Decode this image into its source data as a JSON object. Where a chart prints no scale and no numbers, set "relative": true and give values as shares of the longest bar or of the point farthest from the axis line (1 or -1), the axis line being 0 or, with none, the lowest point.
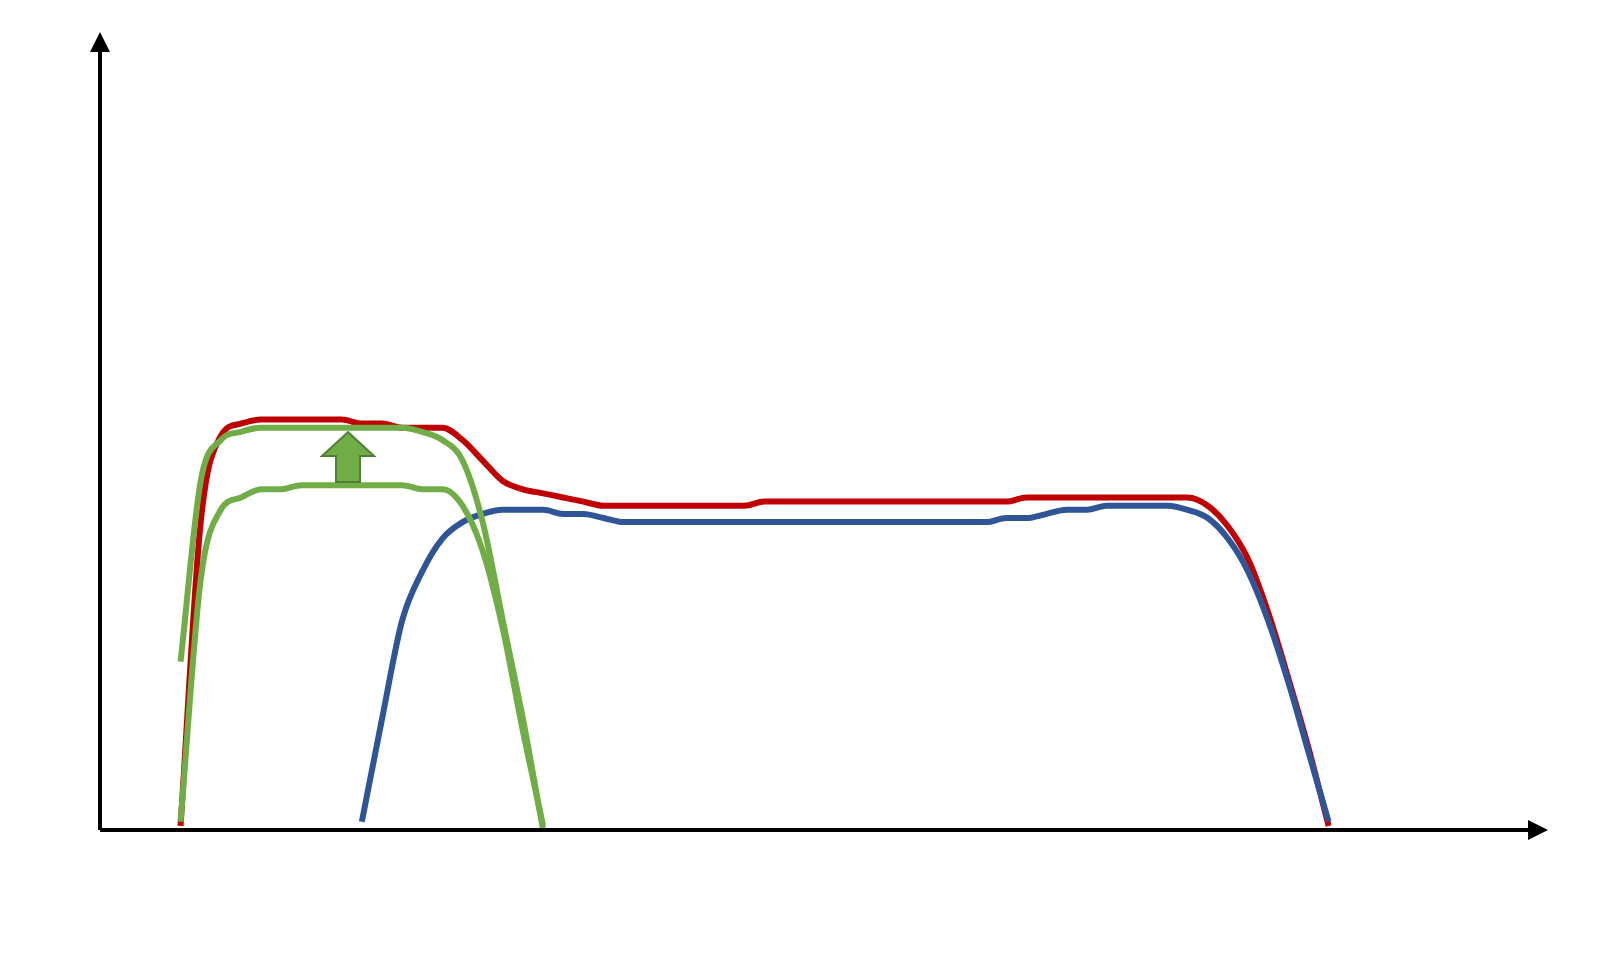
{
  "chart_data": {
    "type": "line",
    "relative": true,
    "grid": false,
    "legend": false,
    "marker": "none",
    "categories": [
      null,
      null,
      null,
      null,
      null,
      null,
      null,
      null,
      null,
      null,
      null,
      null,
      null,
      null,
      null,
      null,
      null,
      null,
      null,
      null,
      null,
      null,
      null,
      null,
      null,
      null,
      null,
      null,
      null,
      null,
      null,
      null,
      null,
      null,
      null,
      null,
      null,
      null,
      null,
      null,
      null,
      null,
      null,
      null,
      null,
      null,
      null,
      null,
      null,
      null,
      null,
      null,
      null,
      null,
      null,
      null,
      null,
      null,
      null,
      null,
      null,
      null,
      null,
      null,
      null,
      null,
      null,
      null,
      null,
      null,
      null,
      null
    ],
    "series": [
      {
        "color": "#70ad47",
        "values": [
          null,
          null,
          null,
          null,
          0.41,
          0.85,
          0.95,
          0.97,
          0.98,
          0.98,
          0.98,
          0.98,
          0.98,
          0.98,
          0.98,
          0.98,
          0.97,
          0.95,
          0.9,
          0.75,
          0.51,
          0.27,
          0.0,
          null,
          null,
          null,
          null,
          null,
          null,
          null,
          null,
          null,
          null,
          null,
          null,
          null,
          null,
          null,
          null,
          null,
          null,
          null,
          null,
          null,
          null,
          null,
          null,
          null,
          null,
          null,
          null,
          null,
          null,
          null,
          null,
          null,
          null,
          null,
          null,
          null,
          null,
          null,
          null,
          null,
          null,
          null,
          null,
          null,
          null,
          null,
          null,
          null
        ]
      },
      {
        "color": "#70ad47",
        "values": [
          null,
          null,
          null,
          null,
          0.02,
          0.61,
          0.78,
          0.81,
          0.83,
          0.83,
          0.84,
          0.84,
          0.84,
          0.84,
          0.84,
          0.84,
          0.83,
          0.83,
          0.79,
          0.68,
          0.49,
          0.24,
          0.01,
          null,
          null,
          null,
          null,
          null,
          null,
          null,
          null,
          null,
          null,
          null,
          null,
          null,
          null,
          null,
          null,
          null,
          null,
          null,
          null,
          null,
          null,
          null,
          null,
          null,
          null,
          null,
          null,
          null,
          null,
          null,
          null,
          null,
          null,
          null,
          null,
          null,
          null,
          null,
          null,
          null,
          null,
          null,
          null,
          null,
          null,
          null,
          null,
          null
        ]
      },
      {
        "color": "#2f5597",
        "values": [
          null,
          null,
          null,
          null,
          null,
          null,
          null,
          null,
          null,
          null,
          null,
          null,
          null,
          0.02,
          0.27,
          0.51,
          0.63,
          0.71,
          0.75,
          0.77,
          0.78,
          0.78,
          0.78,
          0.77,
          0.77,
          0.76,
          0.75,
          0.75,
          0.75,
          0.75,
          0.75,
          0.75,
          0.75,
          0.75,
          0.75,
          0.75,
          0.75,
          0.75,
          0.75,
          0.75,
          0.75,
          0.75,
          0.75,
          0.75,
          0.75,
          0.76,
          0.76,
          0.77,
          0.78,
          0.78,
          0.79,
          0.79,
          0.79,
          0.79,
          0.78,
          0.76,
          0.71,
          0.63,
          0.51,
          0.36,
          0.19,
          0.02,
          null,
          null,
          null,
          null,
          null,
          null,
          null,
          null,
          null,
          null
        ]
      },
      {
        "color": "#c00000",
        "values": [
          null,
          null,
          null,
          null,
          0.01,
          0.75,
          0.96,
          0.99,
          1.0,
          1.0,
          1.0,
          1.0,
          1.0,
          0.99,
          0.99,
          0.98,
          0.98,
          0.98,
          0.95,
          0.9,
          0.85,
          0.83,
          0.82,
          0.81,
          0.8,
          0.79,
          0.79,
          0.79,
          0.79,
          0.79,
          0.79,
          0.79,
          0.79,
          0.8,
          0.8,
          0.8,
          0.8,
          0.8,
          0.8,
          0.8,
          0.8,
          0.8,
          0.8,
          0.8,
          0.8,
          0.8,
          0.81,
          0.81,
          0.81,
          0.81,
          0.81,
          0.81,
          0.81,
          0.81,
          0.81,
          0.79,
          0.74,
          0.66,
          0.53,
          0.37,
          0.2,
          0.01,
          null,
          null,
          null,
          null,
          null,
          null,
          null,
          null,
          null,
          null
        ]
      }
    ]
  }
}
